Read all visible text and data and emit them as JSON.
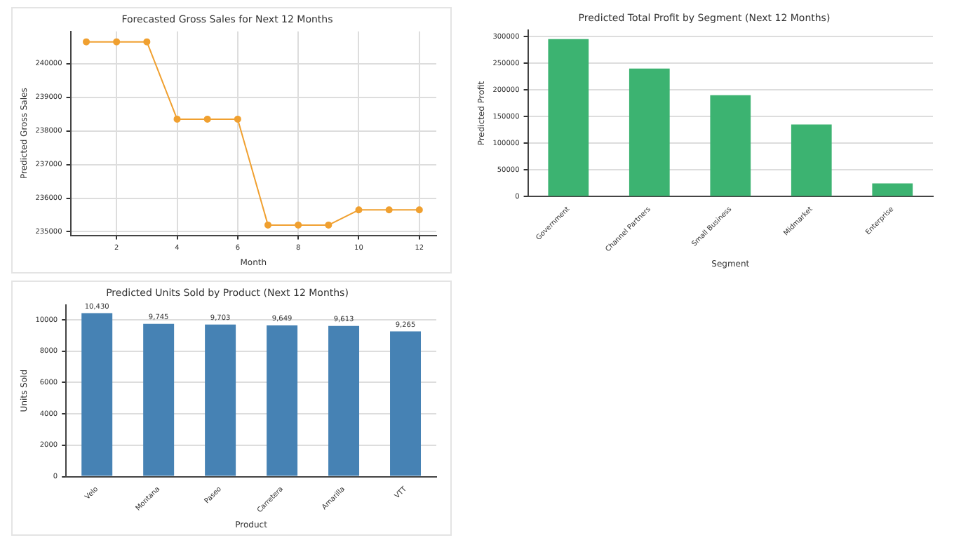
{
  "chart_data": [
    {
      "type": "line",
      "title": "Forecasted Gross Sales for Next 12 Months",
      "xlabel": "Month",
      "ylabel": "Predicted Gross Sales",
      "x": [
        1,
        2,
        3,
        4,
        5,
        6,
        7,
        8,
        9,
        10,
        11,
        12
      ],
      "series": [
        {
          "color": "#f0a030",
          "values": [
            240650,
            240650,
            240650,
            238350,
            238350,
            238350,
            235200,
            235200,
            235200,
            235650,
            235650,
            235650
          ]
        }
      ],
      "xlim": [
        0.48,
        12.56
      ],
      "xticks": [
        2,
        4,
        6,
        8,
        10,
        12
      ],
      "ylim": [
        234893,
        240960
      ],
      "yticks": [
        235000,
        236000,
        237000,
        238000,
        239000,
        240000
      ],
      "grid": true,
      "marker": "circle",
      "legend": false
    },
    {
      "type": "bar",
      "title": "Predicted Total Profit by Segment (Next 12 Months)",
      "xlabel": "Segment",
      "ylabel": "Predicted Profit",
      "categories": [
        "Government",
        "Channel Partners",
        "Small Business",
        "Midmarket",
        "Enterprise"
      ],
      "series": [
        {
          "color": "#3cb371",
          "values": [
            295000,
            240000,
            190000,
            135000,
            25000
          ]
        }
      ],
      "ylim": [
        0,
        312000
      ],
      "yticks": [
        0,
        50000,
        100000,
        150000,
        200000,
        250000,
        300000
      ],
      "grid": "y",
      "legend": false
    },
    {
      "type": "bar",
      "title": "Predicted Units Sold by Product (Next 12 Months)",
      "xlabel": "Product",
      "ylabel": "Units Sold",
      "categories": [
        "Velo",
        "Montana",
        "Paseo",
        "Carretera",
        "Amarilla",
        "VTT"
      ],
      "series": [
        {
          "color": "#4682b4",
          "values": [
            10430,
            9745,
            9703,
            9649,
            9613,
            9265
          ],
          "value_labels": [
            "10,430",
            "9,745",
            "9,703",
            "9,649",
            "9,613",
            "9,265"
          ]
        }
      ],
      "ylim": [
        0,
        10950
      ],
      "yticks": [
        0,
        2000,
        4000,
        6000,
        8000,
        10000
      ],
      "grid": "y",
      "legend": false
    }
  ]
}
